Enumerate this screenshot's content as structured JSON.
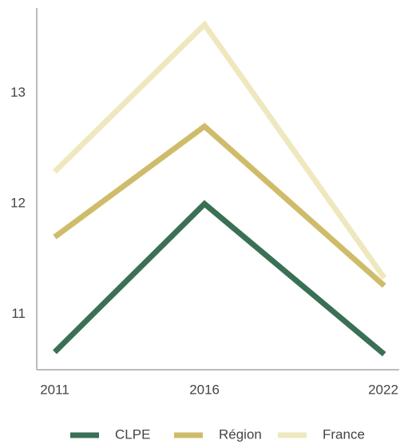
{
  "chart_data": {
    "type": "line",
    "x": [
      2011,
      2016,
      2022
    ],
    "series": [
      {
        "name": "CLPE",
        "color": "#3a7055",
        "values": [
          10.66,
          12.0,
          10.64
        ]
      },
      {
        "name": "Région",
        "color": "#cfbc6a",
        "values": [
          11.7,
          12.7,
          11.26
        ]
      },
      {
        "name": "France",
        "color": "#efe8bf",
        "values": [
          12.29,
          13.62,
          11.33
        ]
      }
    ],
    "xlim": [
      2010.4,
      2022.5
    ],
    "xticks": [
      2011,
      2016,
      2022
    ],
    "ylim": [
      10.5,
      13.77
    ],
    "yticks": [
      11,
      12,
      13
    ],
    "grid": false,
    "legend": "bottom"
  }
}
